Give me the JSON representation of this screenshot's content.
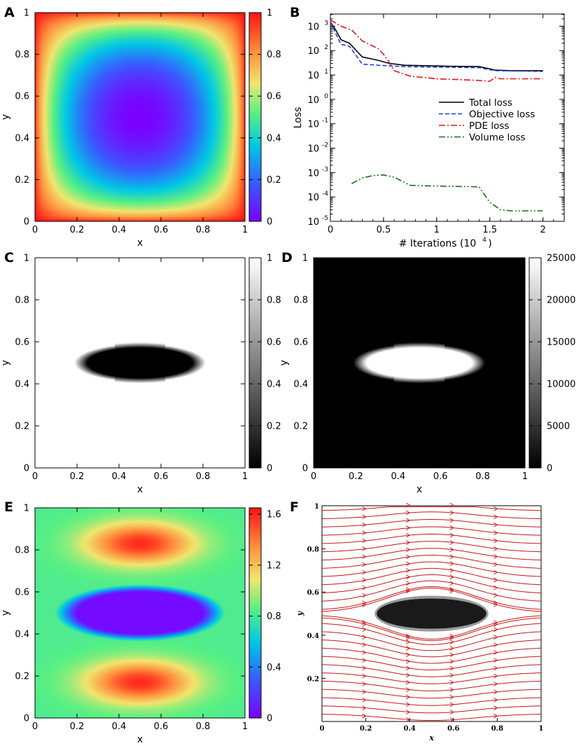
{
  "chart_data": [
    {
      "panel": "A",
      "type": "heatmap",
      "xlabel": "x",
      "ylabel": "y",
      "xlim": [
        0,
        1
      ],
      "ylim": [
        0,
        1
      ],
      "xticks": [
        "0",
        "0.2",
        "0.4",
        "0.6",
        "0.8",
        "1"
      ],
      "yticks": [
        "0",
        "0.2",
        "0.4",
        "0.6",
        "0.8",
        "1"
      ],
      "colorbar": {
        "range": [
          0,
          1
        ],
        "ticks": [
          "0",
          "0.2",
          "0.4",
          "0.6",
          "0.8",
          "1"
        ],
        "colormap": "rainbow"
      },
      "field": {
        "min": 0.0,
        "min_at": [
          0.5,
          0.5
        ],
        "max": 1.0,
        "max_at": "boundary"
      }
    },
    {
      "panel": "B",
      "type": "line",
      "xlabel": "# Iterations (10",
      "xlabel_sup": "4",
      "xlabel_close": ")",
      "ylabel": "Loss",
      "xlim": [
        0,
        2.2
      ],
      "ylim_log10": [
        -5,
        3.5
      ],
      "yscale": "log",
      "xticks": [
        "0",
        "0.5",
        "1",
        "1.5",
        "2"
      ],
      "yticks_base": "10",
      "yticks_exp": [
        "-5",
        "-4",
        "-3",
        "-2",
        "-1",
        "0",
        "1",
        "2",
        "3"
      ],
      "legend_position": "right",
      "series": [
        {
          "name": "Total loss",
          "color": "#000000",
          "dash": "solid",
          "x": [
            0,
            0.05,
            0.1,
            0.18,
            0.3,
            0.45,
            0.55,
            0.7,
            0.9,
            1.1,
            1.4,
            1.55,
            1.7,
            2.0
          ],
          "y": [
            1500,
            700,
            280,
            200,
            55,
            40,
            30,
            25,
            24,
            23,
            22,
            16,
            15,
            15
          ]
        },
        {
          "name": "Objective loss",
          "color": "#1f3fd6",
          "dash": "dashed",
          "x": [
            0,
            0.05,
            0.1,
            0.18,
            0.3,
            0.45,
            0.7,
            1.0,
            1.4,
            1.55,
            2.0
          ],
          "y": [
            1500,
            500,
            180,
            150,
            28,
            25,
            22,
            21,
            20,
            15,
            14
          ]
        },
        {
          "name": "PDE loss",
          "color": "#e8101a",
          "dash": "dashdot",
          "x": [
            0,
            0.1,
            0.2,
            0.3,
            0.45,
            0.5,
            0.55,
            0.6,
            0.75,
            1.0,
            1.2,
            1.4,
            1.5,
            1.55,
            1.6,
            1.7,
            2.0
          ],
          "y": [
            1800,
            1000,
            700,
            250,
            120,
            70,
            35,
            15,
            9,
            7,
            6.5,
            6,
            5.5,
            8,
            7,
            7,
            7
          ]
        },
        {
          "name": "Volume loss",
          "color": "#1a6e1a",
          "dash": "dashdotdot",
          "x": [
            0.2,
            0.3,
            0.4,
            0.5,
            0.6,
            0.75,
            1.0,
            1.2,
            1.4,
            1.5,
            1.6,
            1.7,
            2.0
          ],
          "y": [
            0.00035,
            0.0006,
            0.00075,
            0.0008,
            0.00065,
            0.0003,
            0.00028,
            0.00027,
            0.00026,
            6e-05,
            3e-05,
            2.7e-05,
            2.7e-05
          ]
        }
      ]
    },
    {
      "panel": "C",
      "type": "heatmap",
      "xlabel": "x",
      "ylabel": "y",
      "xticks": [
        "0",
        "0.2",
        "0.4",
        "0.6",
        "0.8",
        "1"
      ],
      "yticks": [
        "0",
        "0.2",
        "0.4",
        "0.6",
        "0.8",
        "1"
      ],
      "colorbar": {
        "range": [
          0,
          1
        ],
        "ticks": [
          "0",
          "0.2",
          "0.4",
          "0.6",
          "0.8",
          "1"
        ],
        "colormap": "gray"
      },
      "shape": {
        "type": "ellipse",
        "center": [
          0.5,
          0.5
        ],
        "semi_axes": [
          0.25,
          0.07
        ],
        "inside": 0,
        "outside": 1
      }
    },
    {
      "panel": "D",
      "type": "heatmap",
      "xlabel": "x",
      "ylabel": "y",
      "xticks": [
        "0",
        "0.2",
        "0.4",
        "0.6",
        "0.8",
        "1"
      ],
      "yticks": [
        "0",
        "0.2",
        "0.4",
        "0.6",
        "0.8",
        "1"
      ],
      "colorbar": {
        "range": [
          0,
          25000
        ],
        "ticks": [
          "0",
          "5000",
          "10000",
          "15000",
          "20000",
          "25000"
        ],
        "colormap": "gray"
      },
      "shape": {
        "type": "ellipse",
        "center": [
          0.5,
          0.5
        ],
        "semi_axes": [
          0.25,
          0.07
        ],
        "inside": 25000,
        "outside": 0
      }
    },
    {
      "panel": "E",
      "type": "heatmap",
      "xlabel": "x",
      "ylabel": "y",
      "xticks": [
        "0",
        "0.2",
        "0.4",
        "0.6",
        "0.8",
        "1"
      ],
      "yticks": [
        "0",
        "0.2",
        "0.4",
        "0.6",
        "0.8",
        "1"
      ],
      "colorbar": {
        "range": [
          0,
          1.65
        ],
        "ticks": [
          "0",
          "0.4",
          "0.8",
          "1.2",
          "1.6"
        ],
        "colormap": "rainbow"
      },
      "field": {
        "min": 0.0,
        "min_region": "ellipse",
        "max": 1.65,
        "max_at": [
          [
            0.5,
            0.83
          ],
          [
            0.5,
            0.17
          ]
        ]
      }
    },
    {
      "panel": "F",
      "type": "scatter",
      "subtype": "streamlines",
      "xlabel": "x",
      "ylabel": "y",
      "xticks": [
        "0",
        "0.2",
        "0.4",
        "0.6",
        "0.8",
        "1"
      ],
      "yticks": [
        "0.2",
        "0.4",
        "0.6",
        "0.8",
        "1"
      ],
      "stream_color": "#c81414",
      "obstacle": {
        "type": "ellipse",
        "center": [
          0.5,
          0.5
        ],
        "semi_axes": [
          0.25,
          0.07
        ]
      }
    }
  ],
  "panel_labels": [
    "A",
    "B",
    "C",
    "D",
    "E",
    "F"
  ]
}
